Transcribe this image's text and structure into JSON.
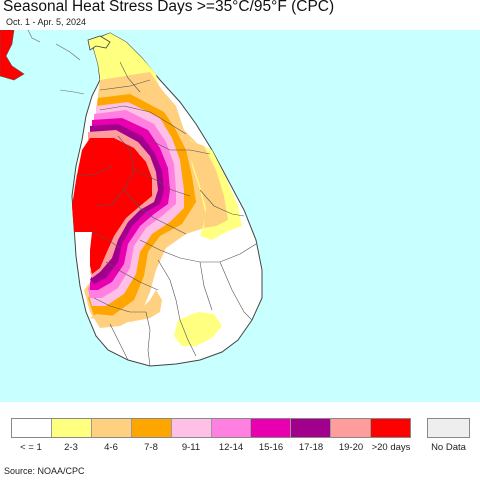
{
  "title": "Seasonal Heat Stress Days >=35°C/95°F (CPC)",
  "subtitle": "Oct. 1 - Apr. 5, 2024",
  "source": "Source: NOAA/CPC",
  "map": {
    "region": "Sri Lanka",
    "ocean_color": "#c8ffff",
    "boundary_color": "#555555"
  },
  "legend": {
    "items": [
      {
        "label": "< = 1",
        "color": "#ffffff"
      },
      {
        "label": "2-3",
        "color": "#ffff80"
      },
      {
        "label": "4-6",
        "color": "#ffd080"
      },
      {
        "label": "7-8",
        "color": "#ffa500"
      },
      {
        "label": "9-11",
        "color": "#ffc0e8"
      },
      {
        "label": "12-14",
        "color": "#ff80e0"
      },
      {
        "label": "15-16",
        "color": "#e800b0"
      },
      {
        "label": "17-18",
        "color": "#a0008c"
      },
      {
        "label": "19-20",
        "color": "#ff9c9c"
      },
      {
        "label": ">20 days",
        "color": "#ff0000"
      }
    ],
    "no_data": {
      "label": "No Data",
      "color": "#eeeeee"
    }
  }
}
